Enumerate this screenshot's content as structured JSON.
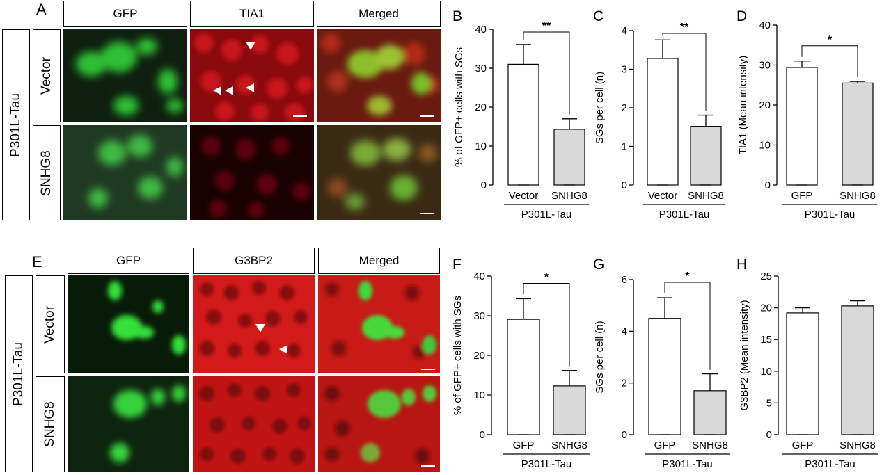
{
  "panel_letters": {
    "a": "A",
    "b": "B",
    "c": "C",
    "d": "D",
    "e": "E",
    "f": "F",
    "g": "G",
    "h": "H"
  },
  "top_row": {
    "group_label": "P301L-Tau",
    "row_labels": [
      "Vector",
      "SNHG8"
    ],
    "column_headers": [
      "GFP",
      "TIA1",
      "Merged"
    ]
  },
  "bottom_row": {
    "group_label": "P301L-Tau",
    "row_labels": [
      "Vector",
      "SNHG8"
    ],
    "column_headers": [
      "GFP",
      "G3BP2",
      "Merged"
    ]
  },
  "colors": {
    "control_bar": "#ffffff",
    "treated_bar": "#d9d9d9",
    "gfp": "#39d43a",
    "red": "#d0141a"
  },
  "chart_data": [
    {
      "panel": "B",
      "type": "bar",
      "categories": [
        "Vector",
        "SNHG8"
      ],
      "values": [
        31.0,
        14.3
      ],
      "errors": [
        5.1,
        2.7
      ],
      "ylabel": "% of GFP+ cells with  SGs",
      "ylim": [
        0,
        40
      ],
      "yticks": [
        0,
        10,
        20,
        30,
        40
      ],
      "group_label": "P301L-Tau",
      "significance": "**"
    },
    {
      "panel": "C",
      "type": "bar",
      "categories": [
        "Vector",
        "SNHG8"
      ],
      "values": [
        3.28,
        1.52
      ],
      "errors": [
        0.48,
        0.29
      ],
      "ylabel": "SGs per cell (n)",
      "ylim": [
        0,
        4
      ],
      "yticks": [
        0,
        1,
        2,
        3,
        4
      ],
      "group_label": "P301L-Tau",
      "significance": "**"
    },
    {
      "panel": "D",
      "type": "bar",
      "categories": [
        "GFP",
        "SNHG8"
      ],
      "values": [
        29.4,
        25.5
      ],
      "errors": [
        1.6,
        0.4
      ],
      "ylabel": "TIA1 (Mean intensity)",
      "ylim": [
        0,
        40
      ],
      "yticks": [
        0,
        10,
        20,
        30,
        40
      ],
      "group_label": "P301L-Tau",
      "significance": "*"
    },
    {
      "panel": "F",
      "type": "bar",
      "categories": [
        "GFP",
        "SNHG8"
      ],
      "values": [
        29.1,
        12.3
      ],
      "errors": [
        5.2,
        3.9
      ],
      "ylabel": "% of GFP+ cells with  SGs",
      "ylim": [
        0,
        40
      ],
      "yticks": [
        0,
        10,
        20,
        30,
        40
      ],
      "group_label": "P301L-Tau",
      "significance": "*"
    },
    {
      "panel": "G",
      "type": "bar",
      "categories": [
        "GFP",
        "SNHG8"
      ],
      "values": [
        4.5,
        1.7
      ],
      "errors": [
        0.8,
        0.65
      ],
      "ylabel": "SGs per cell (n)",
      "ylim": [
        0,
        6
      ],
      "yticks": [
        0,
        2,
        4,
        6
      ],
      "group_label": "P301L-Tau",
      "significance": "*"
    },
    {
      "panel": "H",
      "type": "bar",
      "categories": [
        "GFP",
        "SNHG8"
      ],
      "values": [
        19.2,
        20.3
      ],
      "errors": [
        0.8,
        0.8
      ],
      "ylabel": "G3BP2 (Mean intensity)",
      "ylim": [
        0,
        25
      ],
      "yticks": [
        0,
        5,
        10,
        15,
        20,
        25
      ],
      "group_label": "P301L-Tau",
      "significance": ""
    }
  ]
}
